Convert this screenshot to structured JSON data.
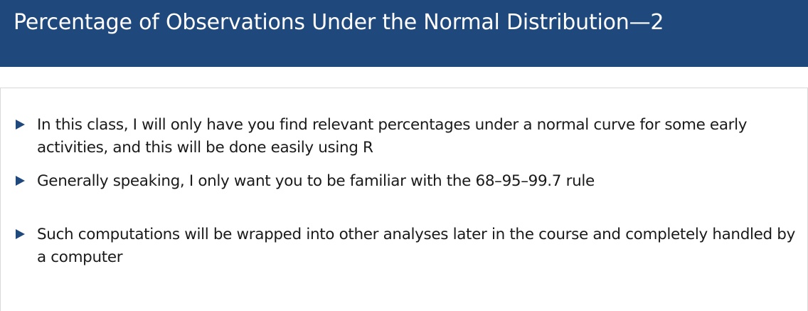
{
  "header": {
    "title": "Percentage of Observations Under the Normal Distribution—2"
  },
  "colors": {
    "title_bar": "#1f497d",
    "bullet_marker": "#1f497d",
    "text": "#1a1a1a"
  },
  "bullets": [
    {
      "icon": "triangle-right-icon",
      "text": "In this class, I will only have you find relevant percentages under a normal curve for some early activities, and this will be done easily using R"
    },
    {
      "icon": "triangle-right-icon",
      "text": "Generally speaking, I only want you to be familiar with the 68–95–99.7 rule"
    },
    {
      "icon": "triangle-right-icon",
      "text": "Such computations will be wrapped into other analyses later in the course and completely handled by a computer"
    }
  ]
}
